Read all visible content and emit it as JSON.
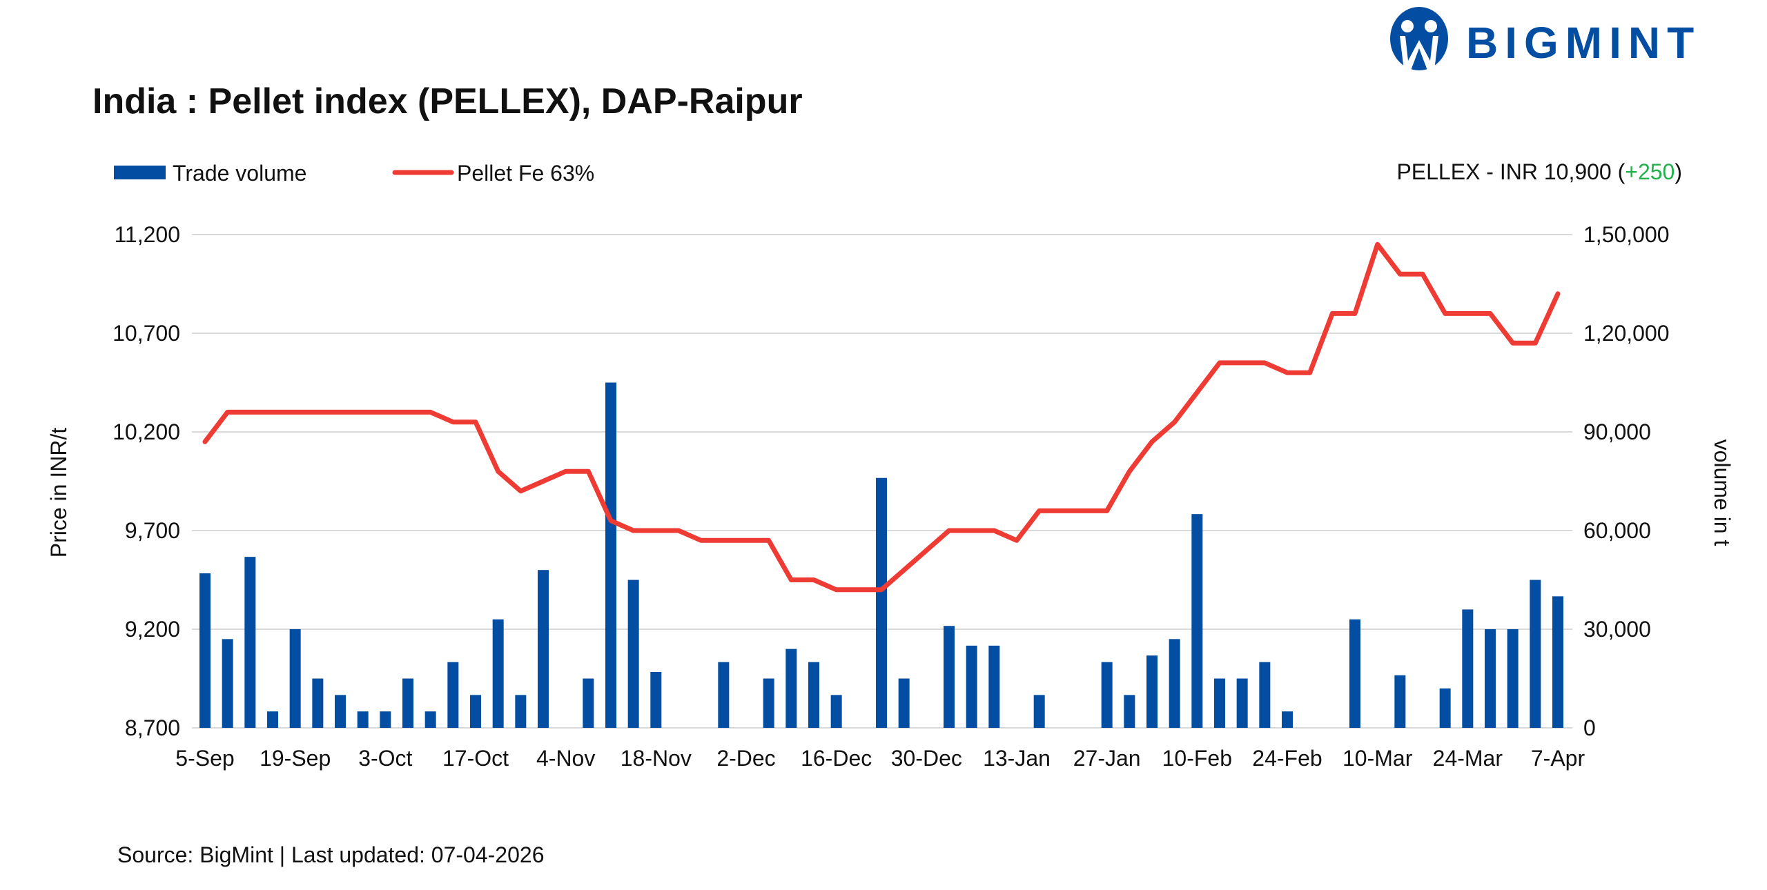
{
  "brand": {
    "name": "BIGMINT",
    "color": "#034EA2"
  },
  "source_text": "Source: BigMint | Last updated: 07-04-2026",
  "headline": {
    "prefix": "PELLEX - INR 10,900 (",
    "change": "+250",
    "suffix": ")",
    "change_color": "#22B14C"
  },
  "chart_data": {
    "type": "bar+line",
    "title": "India : Pellet index (PELLEX), DAP-Raipur",
    "ylabel": "Price in INR/t",
    "y2label": "volume in t",
    "ylim": [
      8700,
      11200
    ],
    "y2lim": [
      0,
      150000
    ],
    "yticks": [
      "11,200",
      "10,700",
      "10,200",
      "9,700",
      "9,200",
      "8,700"
    ],
    "y2ticks": [
      "1,50,000",
      "1,20,000",
      "90,000",
      "60,000",
      "30,000",
      "0"
    ],
    "grid": true,
    "legend_position": "top-left",
    "tick_labels": [
      "5-Sep",
      "19-Sep",
      "3-Oct",
      "17-Oct",
      "4-Nov",
      "18-Nov",
      "2-Dec",
      "16-Dec",
      "30-Dec",
      "13-Jan",
      "27-Jan",
      "10-Feb",
      "24-Feb",
      "10-Mar",
      "24-Mar",
      "7-Apr"
    ],
    "series": [
      {
        "name": "Trade volume",
        "type": "bar",
        "axis": "right",
        "color": "#034EA2",
        "values": [
          47000,
          27000,
          52000,
          5000,
          30000,
          15000,
          10000,
          5000,
          5000,
          15000,
          5000,
          20000,
          10000,
          33000,
          10000,
          48000,
          0,
          15000,
          105000,
          45000,
          17000,
          0,
          0,
          20000,
          0,
          15000,
          24000,
          20000,
          10000,
          0,
          76000,
          15000,
          0,
          31000,
          25000,
          25000,
          0,
          10000,
          0,
          0,
          20000,
          10000,
          22000,
          27000,
          65000,
          15000,
          15000,
          20000,
          5000,
          0,
          0,
          33000,
          0,
          16000,
          0,
          12000,
          36000,
          30000,
          30000,
          45000,
          40000
        ]
      },
      {
        "name": "Pellet Fe 63%",
        "type": "line",
        "axis": "left",
        "color": "#EE3B33",
        "values": [
          10150,
          10300,
          10300,
          10300,
          10300,
          10300,
          10300,
          10300,
          10300,
          10300,
          10300,
          10250,
          10250,
          10000,
          9900,
          9950,
          10000,
          10000,
          9750,
          9700,
          9700,
          9700,
          9650,
          9650,
          9650,
          9650,
          9450,
          9450,
          9400,
          9400,
          9400,
          9500,
          9600,
          9700,
          9700,
          9700,
          9650,
          9800,
          9800,
          9800,
          9800,
          10000,
          10150,
          10250,
          10400,
          10550,
          10550,
          10550,
          10500,
          10500,
          10800,
          10800,
          11150,
          11000,
          11000,
          10800,
          10800,
          10800,
          10650,
          10650,
          10900
        ]
      }
    ]
  }
}
